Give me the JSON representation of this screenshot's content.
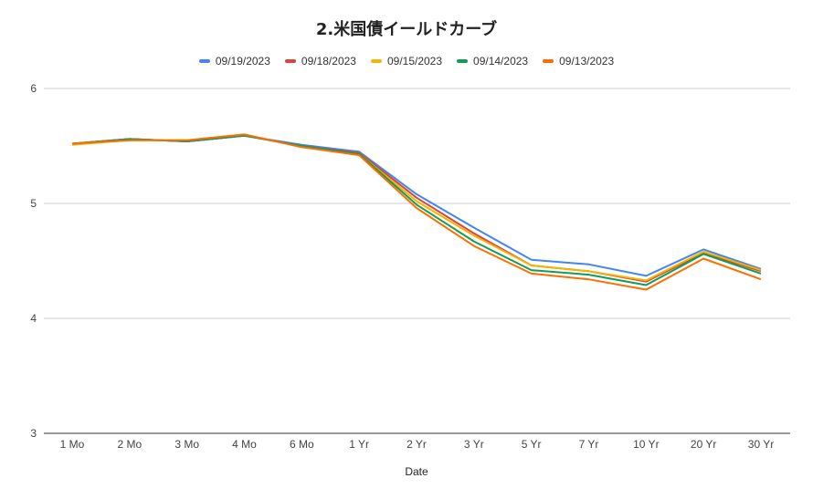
{
  "chart_data": {
    "type": "line",
    "title": "2.米国債イールドカーブ",
    "xlabel": "Date",
    "ylabel": "",
    "ylim": [
      3,
      6
    ],
    "yticks": [
      3,
      4,
      5,
      6
    ],
    "grid": true,
    "legend_position": "top",
    "categories": [
      "1 Mo",
      "2 Mo",
      "3 Mo",
      "4 Mo",
      "6 Mo",
      "1 Yr",
      "2 Yr",
      "3 Yr",
      "5 Yr",
      "7 Yr",
      "10 Yr",
      "20 Yr",
      "30 Yr"
    ],
    "series": [
      {
        "name": "09/19/2023",
        "color": "#4285F4",
        "values": [
          5.52,
          5.56,
          5.54,
          5.59,
          5.51,
          5.45,
          5.08,
          4.79,
          4.51,
          4.47,
          4.37,
          4.6,
          4.43
        ]
      },
      {
        "name": "09/18/2023",
        "color": "#DB4437",
        "values": [
          5.52,
          5.56,
          5.54,
          5.59,
          5.5,
          5.44,
          5.05,
          4.74,
          4.46,
          4.41,
          4.32,
          4.57,
          4.41
        ]
      },
      {
        "name": "09/15/2023",
        "color": "#F4B400",
        "values": [
          5.51,
          5.55,
          5.55,
          5.6,
          5.49,
          5.43,
          5.02,
          4.72,
          4.46,
          4.41,
          4.33,
          4.58,
          4.42
        ]
      },
      {
        "name": "09/14/2023",
        "color": "#0F9D58",
        "values": [
          5.52,
          5.56,
          5.54,
          5.59,
          5.5,
          5.43,
          4.99,
          4.67,
          4.42,
          4.38,
          4.29,
          4.56,
          4.39
        ]
      },
      {
        "name": "09/13/2023",
        "color": "#FF6D01",
        "values": [
          5.52,
          5.55,
          5.55,
          5.6,
          5.49,
          5.42,
          4.96,
          4.63,
          4.39,
          4.34,
          4.25,
          4.52,
          4.34
        ]
      }
    ]
  }
}
